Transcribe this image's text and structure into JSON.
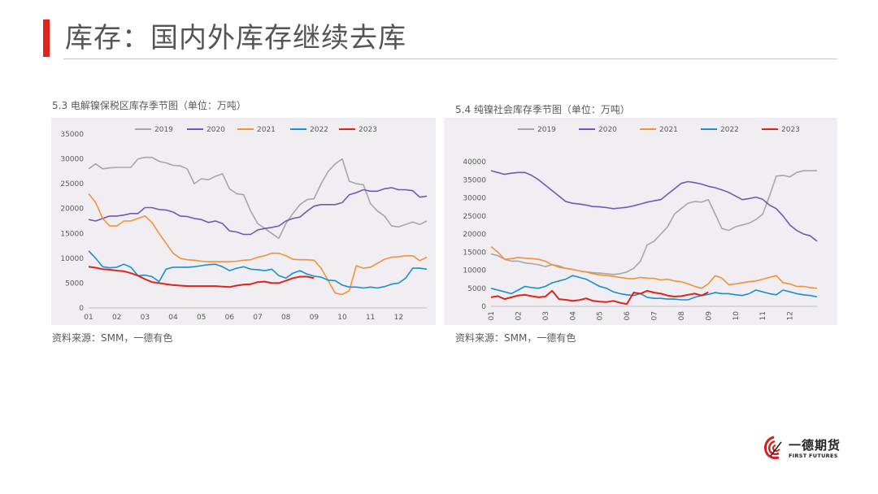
{
  "page": {
    "title": "库存：国内外库存继续去库",
    "source_text": "资料来源：SMM，一德有色",
    "logo_cn": "一德期货",
    "logo_en": "FIRST FUTURES"
  },
  "colors": {
    "accent": "#e2231a",
    "series": {
      "2019": "#a6a6a6",
      "2020": "#7158b3",
      "2021": "#f0923a",
      "2022": "#1a8fc9",
      "2023": "#e0231a"
    }
  },
  "chart_data": [
    {
      "type": "line",
      "caption": "5.3 电解镍保税区库存季节图（单位：万吨）",
      "x_labels": [
        "01",
        "02",
        "03",
        "04",
        "05",
        "06",
        "07",
        "08",
        "09",
        "10",
        "11",
        "12"
      ],
      "x_range": [
        1,
        13
      ],
      "ylim": [
        0,
        35000
      ],
      "yticks": [
        0,
        5000,
        10000,
        15000,
        20000,
        25000,
        30000,
        35000
      ],
      "series": [
        {
          "name": "2019",
          "x": [
            1,
            1.25,
            1.5,
            1.75,
            2,
            2.25,
            2.5,
            2.75,
            3,
            3.25,
            3.5,
            3.75,
            4,
            4.25,
            4.5,
            4.75,
            5,
            5.25,
            5.5,
            5.75,
            6,
            6.25,
            6.5,
            6.75,
            7,
            7.25,
            7.5,
            7.75,
            8,
            8.25,
            8.5,
            8.75,
            9,
            9.25,
            9.5,
            9.75,
            10,
            10.25,
            10.5,
            10.75,
            11,
            11.25,
            11.5,
            11.75,
            12,
            12.25,
            12.5,
            12.75,
            13
          ],
          "y": [
            28000,
            29000,
            28000,
            28200,
            28300,
            28300,
            28300,
            30000,
            30300,
            30300,
            29500,
            29200,
            28700,
            28600,
            28000,
            25000,
            26000,
            25800,
            26500,
            27000,
            24000,
            23000,
            22800,
            19500,
            17000,
            16000,
            15000,
            14000,
            17000,
            19000,
            20800,
            21800,
            22000,
            25000,
            27500,
            29000,
            30000,
            25500,
            25000,
            24800,
            21000,
            19500,
            18500,
            16500,
            16300,
            16800,
            17300,
            16800,
            17500
          ]
        },
        {
          "name": "2020",
          "x": [
            1,
            1.25,
            1.5,
            1.75,
            2,
            2.25,
            2.5,
            2.75,
            3,
            3.25,
            3.5,
            3.75,
            4,
            4.25,
            4.5,
            4.75,
            5,
            5.25,
            5.5,
            5.75,
            6,
            6.25,
            6.5,
            6.75,
            7,
            7.25,
            7.5,
            7.75,
            8,
            8.25,
            8.5,
            8.75,
            9,
            9.25,
            9.5,
            9.75,
            10,
            10.25,
            10.5,
            10.75,
            11,
            11.25,
            11.5,
            11.75,
            12,
            12.25,
            12.5,
            12.75,
            13
          ],
          "y": [
            17800,
            17500,
            18000,
            18500,
            18500,
            18700,
            19000,
            19000,
            20200,
            20200,
            19800,
            19700,
            19300,
            18500,
            18400,
            18000,
            17800,
            17200,
            17500,
            17000,
            15500,
            15300,
            14800,
            14800,
            15700,
            16000,
            16200,
            16500,
            17500,
            18000,
            18300,
            19500,
            20500,
            20800,
            20800,
            20800,
            21200,
            22800,
            23200,
            23800,
            23500,
            23500,
            24000,
            24200,
            23800,
            23800,
            23600,
            22300,
            22500
          ]
        },
        {
          "name": "2021",
          "x": [
            1,
            1.25,
            1.5,
            1.75,
            2,
            2.25,
            2.5,
            2.75,
            3,
            3.25,
            3.5,
            3.75,
            4,
            4.25,
            4.5,
            4.75,
            5,
            5.25,
            5.5,
            5.75,
            6,
            6.25,
            6.5,
            6.75,
            7,
            7.25,
            7.5,
            7.75,
            8,
            8.25,
            8.5,
            8.75,
            9,
            9.25,
            9.5,
            9.75,
            10,
            10.25,
            10.5,
            10.75,
            11,
            11.25,
            11.5,
            11.75,
            12,
            12.25,
            12.5,
            12.75,
            13
          ],
          "y": [
            23000,
            21200,
            18000,
            16500,
            16500,
            17500,
            17500,
            18000,
            18500,
            17200,
            15000,
            13000,
            11000,
            10000,
            9700,
            9600,
            9400,
            9300,
            9300,
            9300,
            9300,
            9400,
            9600,
            9700,
            10200,
            10500,
            11000,
            11000,
            10500,
            9800,
            9700,
            9700,
            9600,
            8000,
            5500,
            3000,
            2700,
            3500,
            8500,
            8000,
            8200,
            9000,
            9800,
            10200,
            10300,
            10500,
            10500,
            9500,
            10200
          ]
        },
        {
          "name": "2022",
          "x": [
            1,
            1.25,
            1.5,
            1.75,
            2,
            2.25,
            2.5,
            2.75,
            3,
            3.25,
            3.5,
            3.75,
            4,
            4.25,
            4.5,
            4.75,
            5,
            5.25,
            5.5,
            5.75,
            6,
            6.25,
            6.5,
            6.75,
            7,
            7.25,
            7.5,
            7.75,
            8,
            8.25,
            8.5,
            8.75,
            9,
            9.25,
            9.5,
            9.75,
            10,
            10.25,
            10.5,
            10.75,
            11,
            11.25,
            11.5,
            11.75,
            12,
            12.25,
            12.5,
            12.75,
            13
          ],
          "y": [
            11500,
            10000,
            8300,
            8100,
            8200,
            8800,
            8200,
            6500,
            6600,
            6300,
            5300,
            7800,
            8200,
            8200,
            8200,
            8300,
            8500,
            8700,
            8800,
            8300,
            7500,
            8000,
            8300,
            7800,
            7700,
            7500,
            7800,
            6500,
            6000,
            7000,
            7500,
            6800,
            6400,
            6200,
            5600,
            5500,
            4600,
            4200,
            4200,
            4000,
            4200,
            4000,
            4300,
            4800,
            5000,
            6000,
            8000,
            8000,
            7800
          ]
        },
        {
          "name": "2023",
          "x": [
            1,
            1.25,
            1.5,
            1.75,
            2,
            2.25,
            2.5,
            2.75,
            3,
            3.25,
            3.5,
            3.75,
            4,
            4.25,
            4.5,
            4.75,
            5,
            5.25,
            5.5,
            5.75,
            6,
            6.25,
            6.5,
            6.75,
            7,
            7.25,
            7.5,
            7.75,
            8,
            8.25,
            8.5,
            8.75,
            9
          ],
          "y": [
            8300,
            8100,
            7800,
            7700,
            7500,
            7400,
            7000,
            6500,
            5800,
            5200,
            5000,
            4800,
            4600,
            4500,
            4400,
            4400,
            4400,
            4400,
            4400,
            4300,
            4200,
            4500,
            4700,
            4800,
            5200,
            5300,
            5000,
            5000,
            5500,
            6000,
            6300,
            6300,
            6000
          ]
        }
      ]
    },
    {
      "type": "line",
      "caption": "5.4 纯镍社会库存季节图（单位：万吨）",
      "x_labels": [
        "01",
        "02",
        "03",
        "04",
        "05",
        "06",
        "07",
        "08",
        "09",
        "10",
        "11",
        "12"
      ],
      "x_range": [
        1,
        13
      ],
      "ylim": [
        0,
        40000
      ],
      "yticks": [
        0,
        5000,
        10000,
        15000,
        20000,
        25000,
        30000,
        35000,
        40000
      ],
      "series": [
        {
          "name": "2019",
          "x": [
            1,
            1.25,
            1.5,
            1.75,
            2,
            2.25,
            2.5,
            2.75,
            3,
            3.25,
            3.5,
            3.75,
            4,
            4.25,
            4.5,
            4.75,
            5,
            5.25,
            5.5,
            5.75,
            6,
            6.25,
            6.5,
            6.75,
            7,
            7.25,
            7.5,
            7.75,
            8,
            8.25,
            8.5,
            8.75,
            9,
            9.25,
            9.5,
            9.75,
            10,
            10.25,
            10.5,
            10.75,
            11,
            11.25,
            11.5,
            11.75,
            12,
            12.25,
            12.5,
            12.75,
            13
          ],
          "y": [
            14500,
            14000,
            13000,
            12500,
            12500,
            12000,
            11800,
            11500,
            11000,
            11500,
            11200,
            10500,
            10200,
            9800,
            9500,
            9300,
            9200,
            9000,
            8800,
            9000,
            9500,
            10500,
            12500,
            17000,
            18000,
            20000,
            22000,
            25500,
            27000,
            28500,
            29000,
            28800,
            29500,
            25500,
            21500,
            21000,
            22000,
            22500,
            23000,
            24000,
            25500,
            30500,
            36000,
            36200,
            35800,
            37000,
            37500,
            37500,
            37500
          ]
        },
        {
          "name": "2020",
          "x": [
            1,
            1.25,
            1.5,
            1.75,
            2,
            2.25,
            2.5,
            2.75,
            3,
            3.25,
            3.5,
            3.75,
            4,
            4.25,
            4.5,
            4.75,
            5,
            5.25,
            5.5,
            5.75,
            6,
            6.25,
            6.5,
            6.75,
            7,
            7.25,
            7.5,
            7.75,
            8,
            8.25,
            8.5,
            8.75,
            9,
            9.25,
            9.5,
            9.75,
            10,
            10.25,
            10.5,
            10.75,
            11,
            11.25,
            11.5,
            11.75,
            12,
            12.25,
            12.5,
            12.75,
            13
          ],
          "y": [
            37500,
            37000,
            36500,
            36800,
            37000,
            37000,
            36200,
            35000,
            33500,
            32000,
            30500,
            29000,
            28500,
            28300,
            28000,
            27600,
            27500,
            27300,
            27000,
            27200,
            27400,
            27800,
            28300,
            28800,
            29200,
            29500,
            31000,
            32500,
            34000,
            34500,
            34200,
            33800,
            33200,
            32800,
            32200,
            31500,
            30500,
            29500,
            29800,
            30200,
            29600,
            28000,
            27000,
            25000,
            22500,
            21000,
            20000,
            19500,
            18000
          ]
        },
        {
          "name": "2021",
          "x": [
            1,
            1.25,
            1.5,
            1.75,
            2,
            2.25,
            2.5,
            2.75,
            3,
            3.25,
            3.5,
            3.75,
            4,
            4.25,
            4.5,
            4.75,
            5,
            5.25,
            5.5,
            5.75,
            6,
            6.25,
            6.5,
            6.75,
            7,
            7.25,
            7.5,
            7.75,
            8,
            8.25,
            8.5,
            8.75,
            9,
            9.25,
            9.5,
            9.75,
            10,
            10.25,
            10.5,
            10.75,
            11,
            11.25,
            11.5,
            11.75,
            12,
            12.25,
            12.5,
            12.75,
            13
          ],
          "y": [
            16500,
            15000,
            13000,
            13200,
            13500,
            13300,
            13200,
            13000,
            12500,
            11500,
            10800,
            10500,
            10200,
            9800,
            9500,
            9000,
            8700,
            8500,
            8300,
            8000,
            7700,
            7600,
            8000,
            7800,
            7700,
            7300,
            7500,
            7000,
            6800,
            6200,
            5500,
            5000,
            6200,
            8500,
            7800,
            6000,
            6200,
            6500,
            6800,
            7000,
            7500,
            8000,
            8500,
            6500,
            6200,
            5500,
            5500,
            5200,
            5000
          ]
        },
        {
          "name": "2022",
          "x": [
            1,
            1.25,
            1.5,
            1.75,
            2,
            2.25,
            2.5,
            2.75,
            3,
            3.25,
            3.5,
            3.75,
            4,
            4.25,
            4.5,
            4.75,
            5,
            5.25,
            5.5,
            5.75,
            6,
            6.25,
            6.5,
            6.75,
            7,
            7.25,
            7.5,
            7.75,
            8,
            8.25,
            8.5,
            8.75,
            9,
            9.25,
            9.5,
            9.75,
            10,
            10.25,
            10.5,
            10.75,
            11,
            11.25,
            11.5,
            11.75,
            12,
            12.25,
            12.5,
            12.75,
            13
          ],
          "y": [
            5000,
            4500,
            4000,
            3500,
            4500,
            5500,
            5200,
            5000,
            5500,
            6500,
            7000,
            7500,
            8500,
            8000,
            7500,
            6500,
            5500,
            5000,
            4000,
            3500,
            3200,
            3000,
            3500,
            2500,
            2200,
            2200,
            2000,
            2000,
            1800,
            1800,
            2500,
            3000,
            3300,
            3800,
            3500,
            3500,
            3200,
            3000,
            3500,
            4500,
            4000,
            3500,
            3200,
            4500,
            4000,
            3500,
            3200,
            3000,
            2600
          ]
        },
        {
          "name": "2023",
          "x": [
            1,
            1.25,
            1.5,
            1.75,
            2,
            2.25,
            2.5,
            2.75,
            3,
            3.25,
            3.5,
            3.75,
            4,
            4.25,
            4.5,
            4.75,
            5,
            5.25,
            5.5,
            5.75,
            6,
            6.25,
            6.5,
            6.75,
            7,
            7.25,
            7.5,
            7.75,
            8,
            8.25,
            8.5,
            8.75,
            9
          ],
          "y": [
            2500,
            2800,
            2000,
            2500,
            3000,
            3200,
            2800,
            2500,
            2700,
            4300,
            2000,
            1800,
            1500,
            1700,
            2200,
            1500,
            1300,
            1200,
            1500,
            1000,
            600,
            3800,
            3500,
            4300,
            3800,
            3500,
            3000,
            2700,
            2800,
            3200,
            3500,
            3000,
            3900
          ]
        }
      ]
    }
  ]
}
